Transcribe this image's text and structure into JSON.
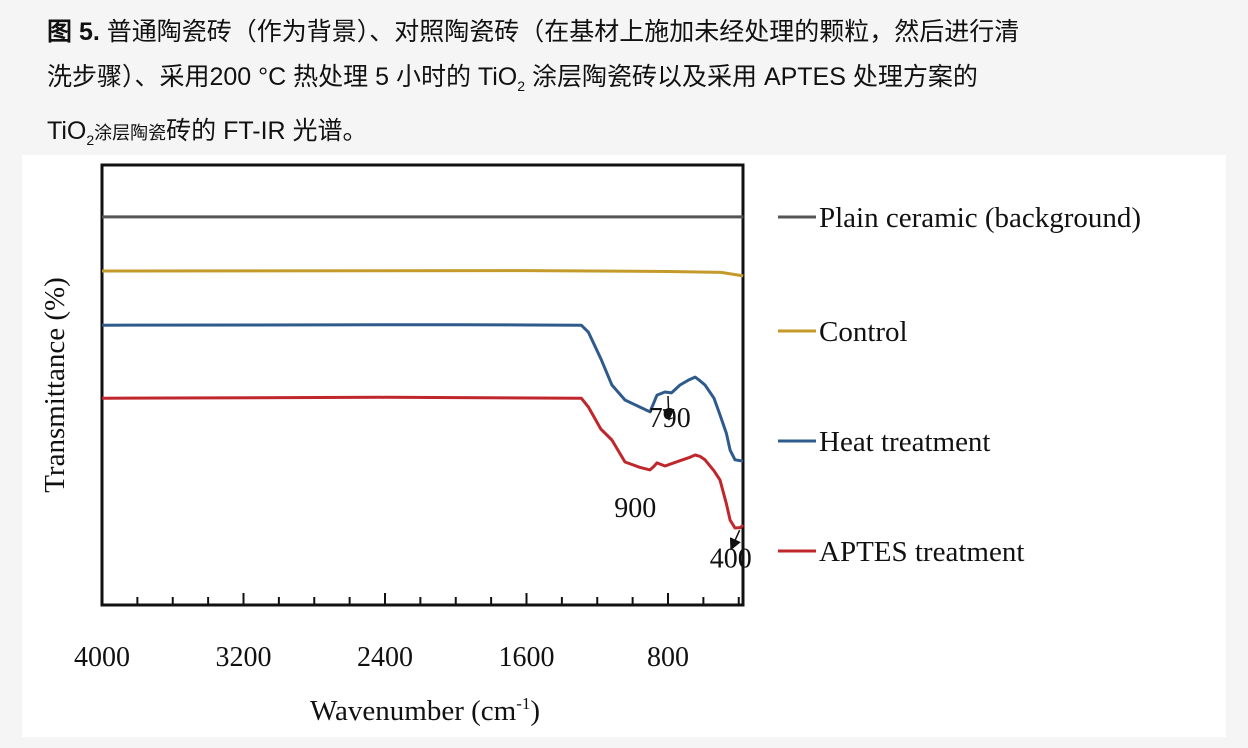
{
  "caption": {
    "figure_label": "图 5.",
    "line1": "普通陶瓷砖（作为背景）、对照陶瓷砖（在基材上施加未经处理的颗粒，然后进行清",
    "line2_a": "洗步骤）、采用200 °C 热处理 5 小时的 TiO",
    "line2_sub": "2",
    "line2_b": " 涂层陶瓷砖以及采用 APTES 处理方案的",
    "line3_a": "TiO",
    "line3_sub": "2",
    "line3_small": "涂层陶瓷",
    "line3_b": "砖的 FT-IR 光谱。"
  },
  "chart_data": {
    "type": "line",
    "title": "",
    "xlabel": "Wavenumber (cm",
    "xlabel_sup": "-1",
    "xlabel_end": ")",
    "ylabel": "Transmittance (%)",
    "xlim": [
      4000,
      375
    ],
    "ylim": [
      0,
      100
    ],
    "x_reversed": true,
    "x_ticks": [
      4000,
      3200,
      2400,
      1600,
      800
    ],
    "x_tick_labels": [
      "4000",
      "3200",
      "2400",
      "1600",
      "800"
    ],
    "y_ticks": [],
    "grid": false,
    "legend_position": "right",
    "series": [
      {
        "name": "Plain ceramic (background)",
        "color": "#555555",
        "x": [
          4000,
          375
        ],
        "y": [
          88.2,
          88.2
        ]
      },
      {
        "name": "Control",
        "color": "#c49a2a",
        "x": [
          4000,
          1600,
          800,
          500,
          375
        ],
        "y": [
          75.9,
          76.0,
          75.8,
          75.6,
          74.8
        ]
      },
      {
        "name": "Heat treatment",
        "color": "#2f5b8c",
        "x": [
          4000,
          2000,
          1290,
          1250,
          1180,
          1117,
          1043,
          960,
          902,
          880,
          862,
          817,
          780,
          732,
          680,
          647,
          620,
          591,
          540,
          506,
          470,
          449,
          421,
          376
        ],
        "y": [
          63.6,
          63.7,
          63.6,
          62,
          56,
          50,
          46.6,
          45,
          43.9,
          46,
          47.7,
          48.4,
          48.2,
          50,
          51.2,
          51.8,
          51,
          50,
          47,
          43.2,
          39,
          35.2,
          33,
          32.7
        ]
      },
      {
        "name": "APTES treatment",
        "color": "#c0272d",
        "x": [
          4000,
          2400,
          1290,
          1250,
          1180,
          1117,
          1043,
          960,
          902,
          880,
          862,
          817,
          732,
          680,
          647,
          620,
          591,
          540,
          506,
          470,
          449,
          421,
          390,
          376
        ],
        "y": [
          47.0,
          47.2,
          47.0,
          45,
          40,
          37.5,
          32.5,
          31.3,
          30.7,
          31.5,
          32.3,
          31.6,
          32.8,
          33.5,
          34.1,
          33.8,
          33,
          30.5,
          28.4,
          23,
          19.3,
          17.5,
          17.6,
          18.2
        ]
      }
    ],
    "annotations": [
      {
        "text": "790",
        "x": 790,
        "y": 40.5,
        "arrow_from": [
          800,
          47.5
        ],
        "arrow_to": [
          795,
          42.5
        ]
      },
      {
        "text": "900",
        "x": 985,
        "y": 20
      },
      {
        "text": "400",
        "x": 445,
        "y": 8.5,
        "arrow_from": [
          395,
          17
        ],
        "arrow_to": [
          440,
          13
        ]
      }
    ]
  }
}
